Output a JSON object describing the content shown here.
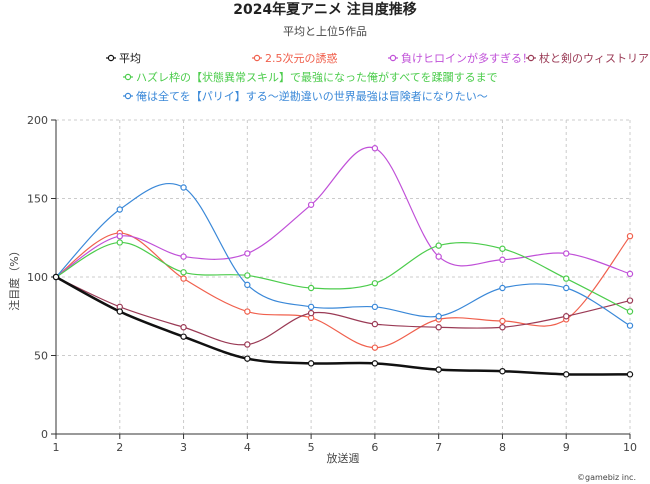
{
  "chart_data": {
    "type": "line",
    "title": "2024年夏アニメ 注目度推移",
    "subtitle": "平均と上位5作品",
    "xlabel": "放送週",
    "ylabel": "注目度（%）",
    "x": [
      1,
      2,
      3,
      4,
      5,
      6,
      7,
      8,
      9,
      10
    ],
    "xlim": [
      1,
      10
    ],
    "ylim": [
      0,
      200
    ],
    "yticks": [
      0,
      50,
      100,
      150,
      200
    ],
    "grid": true,
    "legend_position": "top",
    "credit": "©gamebiz inc.",
    "series": [
      {
        "name": "平均",
        "color": "#111111",
        "width": 2.5,
        "values": [
          100,
          78,
          62,
          48,
          45,
          45,
          41,
          40,
          38,
          38
        ]
      },
      {
        "name": "2.5次元の誘惑",
        "color": "#f0604d",
        "width": 1.2,
        "values": [
          100,
          128,
          99,
          78,
          74,
          55,
          73,
          72,
          73,
          126
        ]
      },
      {
        "name": "負けヒロインが多すぎる！",
        "color": "#c050d8",
        "width": 1.2,
        "values": [
          100,
          126,
          113,
          115,
          146,
          182,
          113,
          111,
          115,
          102
        ]
      },
      {
        "name": "杖と剣のウィストリア",
        "color": "#9a3a55",
        "width": 1.2,
        "values": [
          100,
          81,
          68,
          57,
          77,
          70,
          68,
          68,
          75,
          85
        ]
      },
      {
        "name": "ハズレ枠の【状態異常スキル】で最強になった俺がすべてを蹂躙するまで",
        "color": "#4ccc4c",
        "width": 1.2,
        "values": [
          100,
          122,
          103,
          101,
          93,
          96,
          120,
          118,
          99,
          78
        ]
      },
      {
        "name": "俺は全てを【パリイ】する〜逆勘違いの世界最強は冒険者になりたい〜",
        "color": "#3a88d8",
        "width": 1.2,
        "values": [
          100,
          143,
          157,
          95,
          81,
          81,
          75,
          93,
          93,
          69
        ]
      }
    ]
  }
}
